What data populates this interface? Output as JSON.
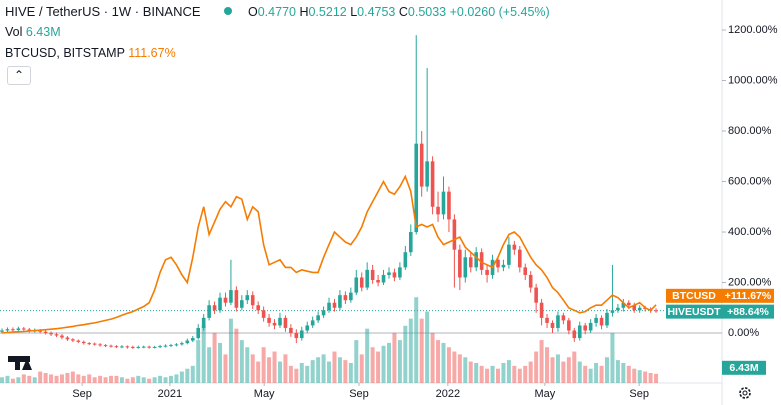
{
  "chart_data": {
    "type": "candlestick",
    "title": "HIVE / TetherUS · 1W · BINANCE",
    "ohlc_header": {
      "o_label": "O",
      "o": "0.4770",
      "h_label": "H",
      "h": "0.5212",
      "l_label": "L",
      "l": "0.4753",
      "c_label": "C",
      "c": "0.5033",
      "change": "+0.0260 (+5.45%)"
    },
    "xlim": [
      -0.37,
      132.1
    ],
    "xticks": [
      {
        "value": 14.7,
        "label": "Sep"
      },
      {
        "value": 30.8,
        "label": "2021"
      },
      {
        "value": 48.1,
        "label": "May"
      },
      {
        "value": 65.5,
        "label": "Sep"
      },
      {
        "value": 81.8,
        "label": "2022"
      },
      {
        "value": 99.6,
        "label": "May"
      },
      {
        "value": 116.9,
        "label": "Sep"
      }
    ],
    "ylim": [
      -198,
      1319
    ],
    "yticks": [
      {
        "value": 0,
        "label": "0.00%"
      },
      {
        "value": 200,
        "label": "200.00%"
      },
      {
        "value": 400,
        "label": "400.00%"
      },
      {
        "value": 600,
        "label": "600.00%"
      },
      {
        "value": 800,
        "label": "800.00%"
      },
      {
        "value": 1000,
        "label": "1000.00%"
      },
      {
        "value": 1200,
        "label": "1200.00%"
      }
    ],
    "up_color": "#26a69a",
    "down_color": "#ef5350",
    "series": [
      {
        "name": "HIVEUSDT",
        "open": [
          5,
          10,
          15,
          12,
          18,
          14,
          8,
          10,
          5,
          0,
          -5,
          -10,
          -18,
          -25,
          -30,
          -35,
          -40,
          -42,
          -45,
          -48,
          -50,
          -52,
          -55,
          -53,
          -55,
          -57,
          -55,
          -54,
          -56,
          -55,
          -52,
          -50,
          -48,
          -45,
          -40,
          -30,
          -20,
          20,
          60,
          110,
          90,
          140,
          120,
          170,
          100,
          130,
          150,
          110,
          90,
          60,
          40,
          30,
          60,
          20,
          0,
          -20,
          10,
          30,
          50,
          70,
          90,
          120,
          100,
          150,
          130,
          160,
          220,
          180,
          250,
          210,
          200,
          230,
          240,
          220,
          260,
          320,
          400,
          750,
          580,
          680,
          500,
          470,
          560,
          450,
          330,
          220,
          300,
          260,
          320,
          250,
          230,
          290,
          260,
          270,
          350,
          330,
          260,
          230,
          180,
          120,
          60,
          40,
          20,
          70,
          50,
          10,
          -20,
          30,
          10,
          40,
          60,
          30,
          80,
          90,
          100,
          120,
          110,
          90,
          100,
          95,
          90
        ],
        "high": [
          18,
          22,
          22,
          25,
          24,
          20,
          18,
          16,
          12,
          6,
          2,
          -4,
          -12,
          -20,
          -26,
          -30,
          -36,
          -38,
          -40,
          -44,
          -46,
          -48,
          -48,
          -49,
          -50,
          -50,
          -50,
          -50,
          -51,
          -47,
          -45,
          -43,
          -40,
          -34,
          -22,
          -12,
          35,
          75,
          130,
          125,
          160,
          160,
          290,
          185,
          150,
          170,
          165,
          125,
          105,
          75,
          55,
          80,
          70,
          35,
          15,
          25,
          45,
          65,
          85,
          105,
          140,
          135,
          170,
          165,
          180,
          250,
          240,
          280,
          270,
          230,
          250,
          260,
          255,
          280,
          345,
          430,
          1180,
          800,
          1050,
          700,
          560,
          620,
          580,
          470,
          350,
          330,
          320,
          340,
          335,
          270,
          310,
          305,
          290,
          380,
          365,
          345,
          275,
          245,
          195,
          135,
          75,
          50,
          85,
          80,
          60,
          20,
          45,
          40,
          55,
          75,
          70,
          95,
          270,
          115,
          135,
          130,
          120,
          110,
          108,
          102,
          98
        ],
        "low": [
          -2,
          4,
          5,
          6,
          8,
          2,
          2,
          -2,
          -6,
          -12,
          -16,
          -25,
          -32,
          -36,
          -40,
          -46,
          -48,
          -50,
          -54,
          -56,
          -58,
          -60,
          -60,
          -62,
          -63,
          -62,
          -60,
          -62,
          -61,
          -60,
          -57,
          -55,
          -53,
          -50,
          -45,
          -36,
          -26,
          10,
          50,
          75,
          80,
          105,
          110,
          85,
          90,
          115,
          95,
          75,
          45,
          25,
          15,
          20,
          5,
          -15,
          -40,
          -30,
          0,
          20,
          40,
          60,
          80,
          85,
          90,
          115,
          120,
          150,
          165,
          170,
          195,
          185,
          190,
          215,
          205,
          210,
          250,
          305,
          390,
          540,
          560,
          470,
          440,
          450,
          400,
          180,
          170,
          200,
          240,
          245,
          230,
          200,
          215,
          240,
          245,
          255,
          310,
          240,
          210,
          160,
          80,
          30,
          20,
          0,
          5,
          35,
          -5,
          -35,
          -30,
          -5,
          0,
          25,
          15,
          20,
          65,
          80,
          85,
          95,
          80,
          80,
          85,
          80,
          80
        ],
        "close": [
          10,
          15,
          12,
          18,
          14,
          8,
          10,
          5,
          0,
          -5,
          -10,
          -18,
          -25,
          -30,
          -35,
          -40,
          -42,
          -45,
          -48,
          -50,
          -52,
          -55,
          -53,
          -55,
          -57,
          -55,
          -54,
          -56,
          -55,
          -52,
          -50,
          -48,
          -45,
          -40,
          -30,
          -20,
          20,
          60,
          110,
          90,
          140,
          120,
          170,
          100,
          130,
          150,
          110,
          90,
          60,
          40,
          30,
          60,
          20,
          0,
          -20,
          10,
          30,
          50,
          70,
          90,
          120,
          100,
          150,
          130,
          160,
          220,
          180,
          250,
          210,
          200,
          230,
          240,
          220,
          260,
          320,
          400,
          750,
          580,
          680,
          500,
          470,
          560,
          450,
          330,
          220,
          300,
          260,
          320,
          250,
          230,
          290,
          260,
          270,
          350,
          330,
          260,
          230,
          180,
          120,
          60,
          40,
          20,
          70,
          50,
          10,
          -20,
          30,
          10,
          40,
          60,
          30,
          80,
          90,
          100,
          120,
          110,
          90,
          100,
          95,
          90,
          88.64
        ],
        "value_labels": {
          "120": "+88.64%"
        }
      },
      {
        "name": "BTCUSD",
        "legend": "BTCUSD, BITSTAMP",
        "legend_value": "111.67%",
        "color": "#f57c00",
        "values": [
          0,
          2,
          4,
          5,
          6,
          8,
          10,
          11,
          13,
          15,
          17,
          20,
          23,
          26,
          30,
          33,
          37,
          40,
          45,
          50,
          55,
          62,
          70,
          78,
          85,
          95,
          105,
          120,
          170,
          240,
          290,
          300,
          270,
          230,
          200,
          300,
          420,
          500,
          390,
          440,
          490,
          520,
          500,
          540,
          530,
          450,
          500,
          480,
          350,
          270,
          280,
          290,
          260,
          260,
          240,
          250,
          245,
          240,
          240,
          300,
          350,
          400,
          380,
          360,
          350,
          380,
          420,
          480,
          520,
          560,
          600,
          560,
          550,
          580,
          620,
          560,
          420,
          430,
          420,
          430,
          380,
          350,
          360,
          370,
          380,
          340,
          320,
          300,
          280,
          270,
          260,
          300,
          350,
          390,
          400,
          380,
          340,
          300,
          270,
          250,
          220,
          180,
          160,
          130,
          100,
          90,
          80,
          85,
          100,
          110,
          110,
          130,
          150,
          140,
          120,
          100,
          110,
          120,
          100,
          90,
          111.67
        ],
        "value_labels": {
          "120": "+111.67%"
        }
      }
    ],
    "volume": {
      "name": "Vol",
      "vlim": [
        0,
        100
      ],
      "values": [
        4,
        5,
        3,
        4,
        6,
        5,
        4,
        8,
        7,
        6,
        5,
        6,
        7,
        8,
        6,
        5,
        6,
        4,
        5,
        4,
        5,
        5,
        4,
        3,
        4,
        5,
        4,
        3,
        4,
        5,
        4,
        5,
        6,
        8,
        10,
        12,
        30,
        40,
        25,
        35,
        28,
        20,
        45,
        38,
        30,
        25,
        20,
        15,
        25,
        18,
        22,
        15,
        20,
        12,
        10,
        14,
        12,
        16,
        18,
        20,
        15,
        22,
        18,
        16,
        14,
        30,
        20,
        38,
        25,
        22,
        26,
        28,
        35,
        30,
        40,
        45,
        60,
        45,
        50,
        35,
        30,
        28,
        25,
        22,
        20,
        18,
        15,
        14,
        12,
        10,
        12,
        10,
        14,
        16,
        12,
        10,
        12,
        15,
        22,
        30,
        25,
        18,
        20,
        15,
        18,
        22,
        15,
        12,
        10,
        14,
        12,
        18,
        35,
        16,
        14,
        12,
        10,
        9,
        8,
        7,
        6.43
      ],
      "value_labels": {
        "120": "6.43M"
      }
    }
  }
}
